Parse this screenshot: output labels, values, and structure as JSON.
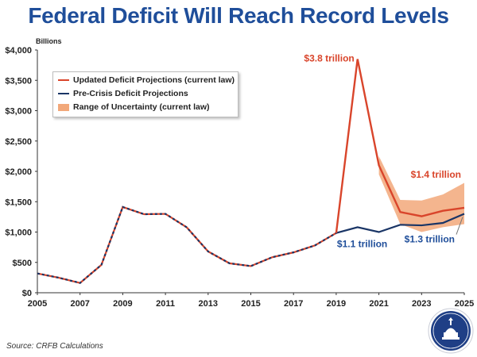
{
  "title": "Federal Deficit Will Reach Record Levels",
  "source": "Source: CRFB Calculations",
  "legend": {
    "updated": "Updated Deficit Projections (current law)",
    "precrisis": "Pre-Crisis Deficit Projections",
    "range": "Range of Uncertainty (current law)"
  },
  "colors": {
    "title": "#1f4e9a",
    "updated": "#d9452b",
    "precrisis": "#1a3566",
    "range": "#f2a87a",
    "annotation_red": "#d9452b",
    "annotation_navy": "#1f4e9a"
  },
  "chart_data": {
    "type": "line",
    "title": "Federal Deficit Will Reach Record Levels",
    "ylabel": "Billions",
    "xlabel": "",
    "xlim": [
      2005,
      2025
    ],
    "ylim": [
      0,
      4000
    ],
    "x_ticks": [
      2005,
      2007,
      2009,
      2011,
      2013,
      2015,
      2017,
      2019,
      2021,
      2023,
      2025
    ],
    "y_ticks": [
      {
        "value": 0,
        "label": "$0"
      },
      {
        "value": 500,
        "label": "$500"
      },
      {
        "value": 1000,
        "label": "$1,000"
      },
      {
        "value": 1500,
        "label": "$1,500"
      },
      {
        "value": 2000,
        "label": "$2,000"
      },
      {
        "value": 2500,
        "label": "$2,500"
      },
      {
        "value": 3000,
        "label": "$3,000"
      },
      {
        "value": 3500,
        "label": "$3,500"
      },
      {
        "value": 4000,
        "label": "$4,000"
      }
    ],
    "historical": {
      "x": [
        2005,
        2006,
        2007,
        2008,
        2009,
        2010,
        2011,
        2012,
        2013,
        2014,
        2015,
        2016,
        2017,
        2018,
        2019
      ],
      "values": [
        318,
        248,
        161,
        459,
        1413,
        1294,
        1300,
        1077,
        680,
        485,
        439,
        585,
        665,
        779,
        984
      ]
    },
    "series": [
      {
        "name": "Updated Deficit Projections (current law)",
        "x": [
          2019,
          2020,
          2021,
          2022,
          2023,
          2024,
          2025
        ],
        "values": [
          984,
          3850,
          2100,
          1330,
          1260,
          1350,
          1400
        ]
      },
      {
        "name": "Pre-Crisis Deficit Projections",
        "x": [
          2019,
          2020,
          2021,
          2022,
          2023,
          2024,
          2025
        ],
        "values": [
          984,
          1080,
          1000,
          1120,
          1110,
          1150,
          1300
        ]
      }
    ],
    "range": {
      "name": "Range of Uncertainty (current law)",
      "x": [
        2021,
        2022,
        2023,
        2024,
        2025
      ],
      "upper": [
        2250,
        1530,
        1520,
        1620,
        1810
      ],
      "lower": [
        1950,
        1130,
        1000,
        1080,
        1130
      ]
    },
    "annotations": [
      {
        "text": "$3.8 trillion",
        "color": "red"
      },
      {
        "text": "$1.4 trillion",
        "color": "red"
      },
      {
        "text": "$1.1 trillion",
        "color": "navy"
      },
      {
        "text": "$1.3 trillion",
        "color": "navy"
      }
    ]
  }
}
